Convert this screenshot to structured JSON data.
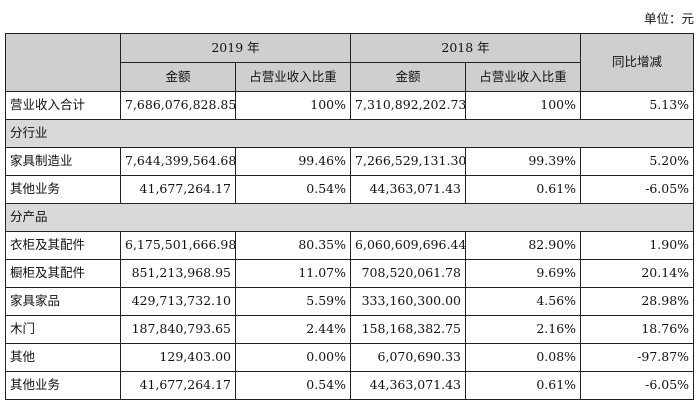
{
  "unit_label": "单位：元",
  "header": {
    "year_2019": "2019 年",
    "year_2018": "2018 年",
    "amount": "金额",
    "ratio": "占营业收入比重",
    "yoy": "同比增减"
  },
  "total_row": {
    "label": "营业收入合计",
    "amt_2019": "7,686,076,828.85",
    "pct_2019": "100%",
    "amt_2018": "7,310,892,202.73",
    "pct_2018": "100%",
    "yoy": "5.13%"
  },
  "sections": [
    {
      "title": "分行业",
      "rows": [
        {
          "label": "家具制造业",
          "amt_2019": "7,644,399,564.68",
          "pct_2019": "99.46%",
          "amt_2018": "7,266,529,131.30",
          "pct_2018": "99.39%",
          "yoy": "5.20%"
        },
        {
          "label": "其他业务",
          "amt_2019": "41,677,264.17",
          "pct_2019": "0.54%",
          "amt_2018": "44,363,071.43",
          "pct_2018": "0.61%",
          "yoy": "-6.05%"
        }
      ]
    },
    {
      "title": "分产品",
      "rows": [
        {
          "label": "衣柜及其配件",
          "amt_2019": "6,175,501,666.98",
          "pct_2019": "80.35%",
          "amt_2018": "6,060,609,696.44",
          "pct_2018": "82.90%",
          "yoy": "1.90%"
        },
        {
          "label": "橱柜及其配件",
          "amt_2019": "851,213,968.95",
          "pct_2019": "11.07%",
          "amt_2018": "708,520,061.78",
          "pct_2018": "9.69%",
          "yoy": "20.14%"
        },
        {
          "label": "家具家品",
          "amt_2019": "429,713,732.10",
          "pct_2019": "5.59%",
          "amt_2018": "333,160,300.00",
          "pct_2018": "4.56%",
          "yoy": "28.98%"
        },
        {
          "label": "木门",
          "amt_2019": "187,840,793.65",
          "pct_2019": "2.44%",
          "amt_2018": "158,168,382.75",
          "pct_2018": "2.16%",
          "yoy": "18.76%"
        },
        {
          "label": "其他",
          "amt_2019": "129,403.00",
          "pct_2019": "0.00%",
          "amt_2018": "6,070,690.33",
          "pct_2018": "0.08%",
          "yoy": "-97.87%"
        },
        {
          "label": "其他业务",
          "amt_2019": "41,677,264.17",
          "pct_2019": "0.54%",
          "amt_2018": "44,363,071.43",
          "pct_2018": "0.61%",
          "yoy": "-6.05%"
        }
      ]
    }
  ]
}
